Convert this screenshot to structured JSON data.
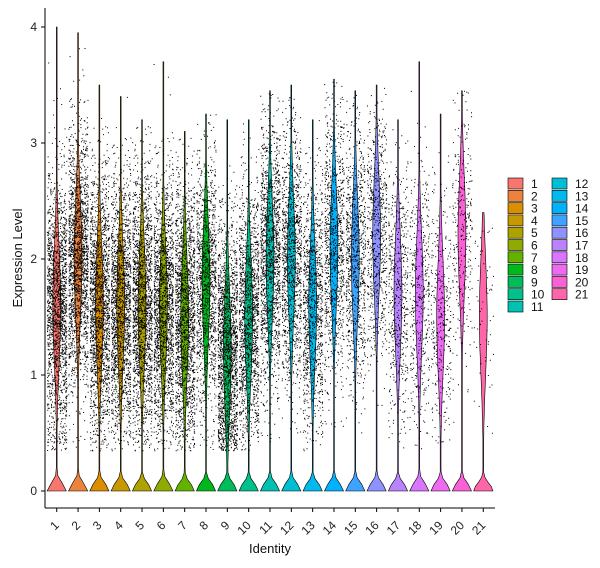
{
  "chart_data": {
    "type": "violin",
    "xlabel": "Identity",
    "ylabel": "Expression Level",
    "ylim": [
      0,
      4.2
    ],
    "yticks": [
      0,
      1,
      2,
      3,
      4
    ],
    "grid": false,
    "legend_position": "right",
    "legend_columns": 2,
    "categories": [
      "1",
      "2",
      "3",
      "4",
      "5",
      "6",
      "7",
      "8",
      "9",
      "10",
      "11",
      "12",
      "13",
      "14",
      "15",
      "16",
      "17",
      "18",
      "19",
      "20",
      "21"
    ],
    "series": [
      {
        "name": "1",
        "color": "#F8766D",
        "max": 4.0,
        "upper_mode": 1.6,
        "points": 9000
      },
      {
        "name": "2",
        "color": "#EC823C",
        "max": 3.95,
        "upper_mode": 2.0,
        "points": 9000
      },
      {
        "name": "3",
        "color": "#DB8E00",
        "max": 3.5,
        "upper_mode": 1.6,
        "points": 6500
      },
      {
        "name": "4",
        "color": "#C79800",
        "max": 3.4,
        "upper_mode": 1.6,
        "points": 6000
      },
      {
        "name": "5",
        "color": "#AEA200",
        "max": 3.2,
        "upper_mode": 1.6,
        "points": 6000
      },
      {
        "name": "6",
        "color": "#8FAA00",
        "max": 3.7,
        "upper_mode": 1.6,
        "points": 5500
      },
      {
        "name": "7",
        "color": "#64B200",
        "max": 3.1,
        "upper_mode": 1.5,
        "points": 5000
      },
      {
        "name": "8",
        "color": "#00B81B",
        "max": 3.25,
        "upper_mode": 1.8,
        "points": 1300
      },
      {
        "name": "9",
        "color": "#00BD5C",
        "max": 3.2,
        "upper_mode": 1.2,
        "points": 1800
      },
      {
        "name": "10",
        "color": "#00C08B",
        "max": 3.2,
        "upper_mode": 1.5,
        "points": 1500
      },
      {
        "name": "11",
        "color": "#00C1B2",
        "max": 3.45,
        "upper_mode": 2.0,
        "points": 1500
      },
      {
        "name": "12",
        "color": "#00BFD4",
        "max": 3.5,
        "upper_mode": 2.0,
        "points": 1200
      },
      {
        "name": "13",
        "color": "#00BAEE",
        "max": 3.2,
        "upper_mode": 1.6,
        "points": 1100
      },
      {
        "name": "14",
        "color": "#00B1FD",
        "max": 3.55,
        "upper_mode": 2.1,
        "points": 1000
      },
      {
        "name": "15",
        "color": "#3EA3FF",
        "max": 3.45,
        "upper_mode": 2.0,
        "points": 900
      },
      {
        "name": "16",
        "color": "#8D92FF",
        "max": 3.5,
        "upper_mode": 2.2,
        "points": 700
      },
      {
        "name": "17",
        "color": "#B983FF",
        "max": 3.2,
        "upper_mode": 1.7,
        "points": 550
      },
      {
        "name": "18",
        "color": "#D975FF",
        "max": 3.7,
        "upper_mode": 1.7,
        "points": 450
      },
      {
        "name": "19",
        "color": "#EE6AF2",
        "max": 3.25,
        "upper_mode": 1.5,
        "points": 350
      },
      {
        "name": "20",
        "color": "#FB61D7",
        "max": 3.45,
        "upper_mode": 2.2,
        "points": 300
      },
      {
        "name": "21",
        "color": "#FF66A8",
        "max": 2.4,
        "upper_mode": 1.5,
        "points": 60
      }
    ]
  }
}
